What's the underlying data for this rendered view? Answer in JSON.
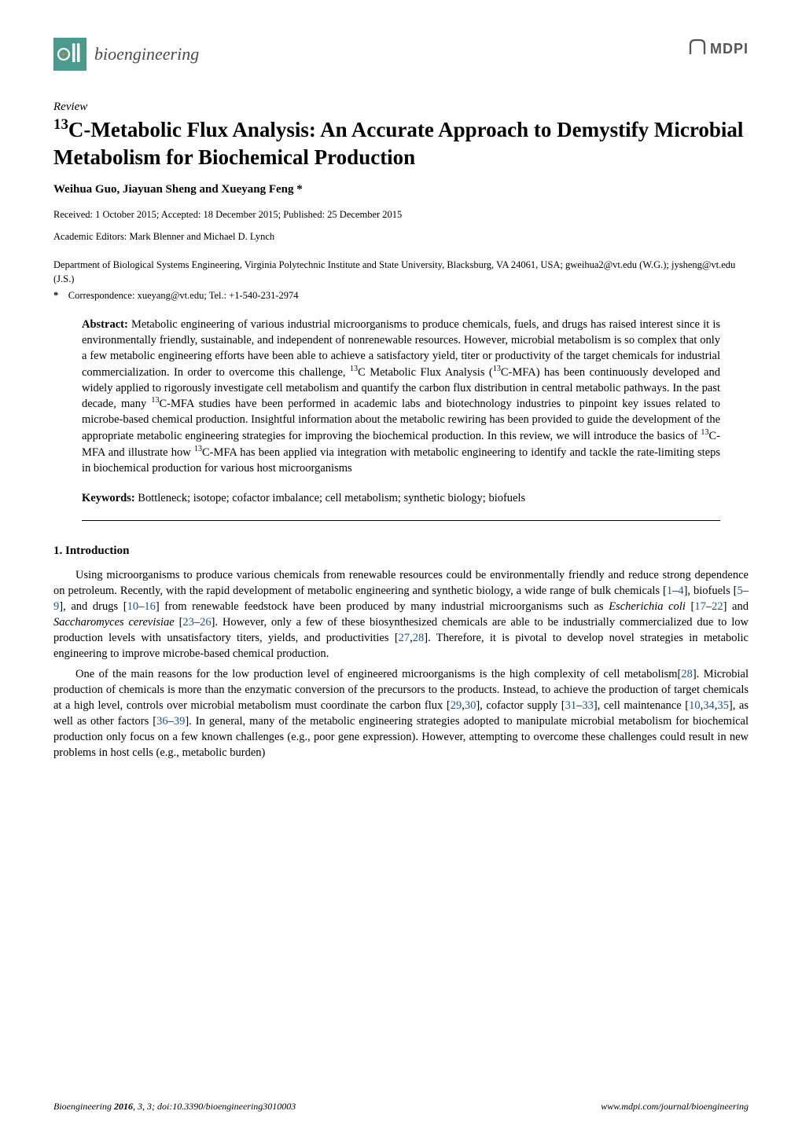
{
  "header": {
    "journal_name": "bioengineering",
    "publisher": "MDPI",
    "logo_bg_color": "#4a9b8e",
    "logo_accent_color": "#d97a2e",
    "mdpi_color": "#555555"
  },
  "article": {
    "type": "Review",
    "title_html": "<sup>13</sup>C-Metabolic Flux Analysis: An Accurate Approach to Demystify Microbial Metabolism for Biochemical Production",
    "authors": "Weihua Guo, Jiayuan Sheng and Xueyang Feng *",
    "received_line": "Received: 1 October 2015; Accepted: 18 December 2015; Published: 25 December 2015",
    "editors_line": "Academic Editors: Mark Blenner and Michael D. Lynch",
    "affiliation": "Department of Biological Systems Engineering, Virginia Polytechnic Institute and State University, Blacksburg, VA 24061, USA; gweihua2@vt.edu (W.G.); jysheng@vt.edu (J.S.)",
    "correspondence_star": "*",
    "correspondence": "Correspondence: xueyang@vt.edu; Tel.: +1-540-231-2974"
  },
  "abstract": {
    "label": "Abstract:",
    "text_html": "Metabolic engineering of various industrial microorganisms to produce chemicals, fuels, and drugs has raised interest since it is environmentally friendly, sustainable, and independent of nonrenewable resources. However, microbial metabolism is so complex that only a few metabolic engineering efforts have been able to achieve a satisfactory yield, titer or productivity of the target chemicals for industrial commercialization. In order to overcome this challenge, <sup>13</sup>C Metabolic Flux Analysis (<sup>13</sup>C-MFA) has been continuously developed and widely applied to rigorously investigate cell metabolism and quantify the carbon flux distribution in central metabolic pathways. In the past decade, many <sup>13</sup>C-MFA studies have been performed in academic labs and biotechnology industries to pinpoint key issues related to microbe-based chemical production. Insightful information about the metabolic rewiring has been provided to guide the development of the appropriate metabolic engineering strategies for improving the biochemical production. In this review, we will introduce the basics of <sup>13</sup>C-MFA and illustrate how <sup>13</sup>C-MFA has been applied via integration with metabolic engineering to identify and tackle the rate-limiting steps in biochemical production for various host microorganisms"
  },
  "keywords": {
    "label": "Keywords:",
    "text": "Bottleneck; isotope; cofactor imbalance; cell metabolism; synthetic biology; biofuels"
  },
  "section1": {
    "heading": "1.  Introduction",
    "para1_html": "Using microorganisms to produce various chemicals from renewable resources could be environmentally friendly and reduce strong dependence on petroleum. Recently, with the rapid development of metabolic engineering and synthetic biology, a wide range of bulk chemicals [<span class=\"ref-link\">1</span>–<span class=\"ref-link\">4</span>], biofuels [<span class=\"ref-link\">5</span>–<span class=\"ref-link\">9</span>], and drugs [<span class=\"ref-link\">10</span>–<span class=\"ref-link\">16</span>] from renewable feedstock have been produced by many industrial microorganisms such as <span class=\"ital\">Escherichia coli</span> [<span class=\"ref-link\">17</span>–<span class=\"ref-link\">22</span>] and <span class=\"ital\">Saccharomyces cerevisiae</span> [<span class=\"ref-link\">23</span>–<span class=\"ref-link\">26</span>]. However, only a few of these biosynthesized chemicals are able to be industrially commercialized due to low production levels with unsatisfactory titers, yields, and productivities [<span class=\"ref-link\">27</span>,<span class=\"ref-link\">28</span>]. Therefore, it is pivotal to develop novel strategies in metabolic engineering to improve microbe-based chemical production.",
    "para2_html": "One of the main reasons for the low production level of engineered microorganisms is the high complexity of cell metabolism[<span class=\"ref-link\">28</span>]. Microbial production of chemicals is more than the enzymatic conversion of the precursors to the products. Instead, to achieve the production of target chemicals at a high level, controls over microbial metabolism must coordinate the carbon flux [<span class=\"ref-link\">29</span>,<span class=\"ref-link\">30</span>], cofactor supply [<span class=\"ref-link\">31</span>–<span class=\"ref-link\">33</span>], cell maintenance [<span class=\"ref-link\">10</span>,<span class=\"ref-link\">34</span>,<span class=\"ref-link\">35</span>], as well as other factors [<span class=\"ref-link\">36</span>–<span class=\"ref-link\">39</span>]. In general, many of the metabolic engineering strategies adopted to manipulate microbial metabolism for biochemical production only focus on a few known challenges (e.g., poor gene expression). However, attempting to overcome these challenges could result in new problems in host cells (e.g., metabolic burden)"
  },
  "footer": {
    "left_html": "<span class=\"ital\">Bioengineering</span> <b>2016</b>, <span class=\"ital\">3</span>, 3; doi:10.3390/bioengineering3010003",
    "right": "www.mdpi.com/journal/bioengineering"
  }
}
